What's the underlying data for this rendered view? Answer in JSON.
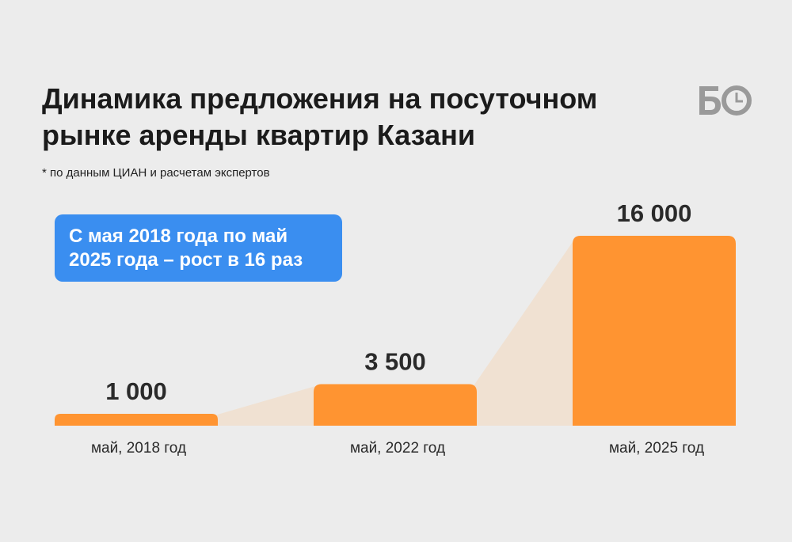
{
  "header": {
    "title_line1": "Динамика предложения на посуточном",
    "title_line2": "рынке аренды квартир Казани",
    "footnote": "* по данным ЦИАН и расчетам экспертов",
    "logo_text": "БО"
  },
  "callout": {
    "line1": "С мая 2018 года по май",
    "line2": "2025 года – рост в 16 раз"
  },
  "colors": {
    "bar": "#ff9431",
    "connector": "#f0e1d2",
    "callout": "#3a8ef0",
    "background": "#ececec",
    "logo": "#9a9a9a"
  },
  "chart_data": {
    "type": "bar",
    "categories": [
      "май, 2018 год",
      "май, 2022 год",
      "май, 2025 год"
    ],
    "values": [
      1000,
      3500,
      16000
    ],
    "value_labels": [
      "1 000",
      "3 500",
      "16 000"
    ],
    "ylim": [
      0,
      16000
    ],
    "grid": false,
    "legend": "none",
    "title": "Динамика предложения на посуточном рынке аренды квартир Казани"
  }
}
